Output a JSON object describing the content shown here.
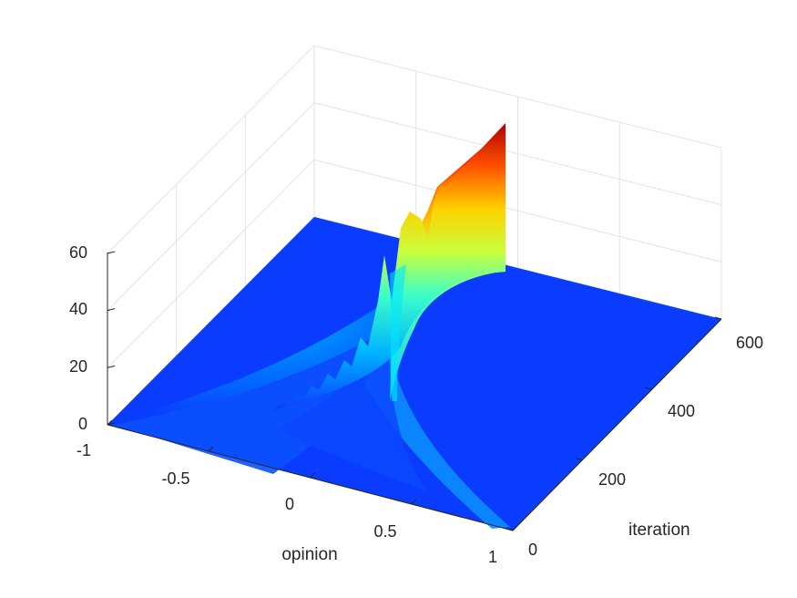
{
  "chart_data": {
    "type": "surface",
    "title": "",
    "xlabel": "opinion",
    "ylabel": "iteration",
    "zlabel": "",
    "xlim": [
      -1,
      1
    ],
    "ylim": [
      0,
      600
    ],
    "zlim": [
      0,
      60
    ],
    "x_ticks": [
      "-1",
      "-0.5",
      "0",
      "0.5",
      "1"
    ],
    "y_ticks": [
      "0",
      "200",
      "400",
      "600"
    ],
    "z_ticks": [
      "0",
      "20",
      "40",
      "60"
    ],
    "grid": true,
    "colormap": "jet",
    "floor_color": "#0a3cff",
    "surface": {
      "description_values": {
        "consensus_opinion": 0.3,
        "peak_density": 60,
        "consensus_reached_iteration": 300
      },
      "ridges": [
        {
          "iteration": 0,
          "opinion": 0.3,
          "density": 2
        },
        {
          "iteration": 100,
          "opinion": 0.3,
          "density": 10
        },
        {
          "iteration": 180,
          "opinion": 0.3,
          "density": 20
        },
        {
          "iteration": 230,
          "opinion": 0.3,
          "density": 30
        },
        {
          "iteration": 260,
          "opinion": 0.3,
          "density": 40
        },
        {
          "iteration": 280,
          "opinion": 0.3,
          "density": 50
        },
        {
          "iteration": 300,
          "opinion": 0.3,
          "density": 58
        },
        {
          "iteration": 600,
          "opinion": 0.3,
          "density": 60
        }
      ]
    }
  }
}
